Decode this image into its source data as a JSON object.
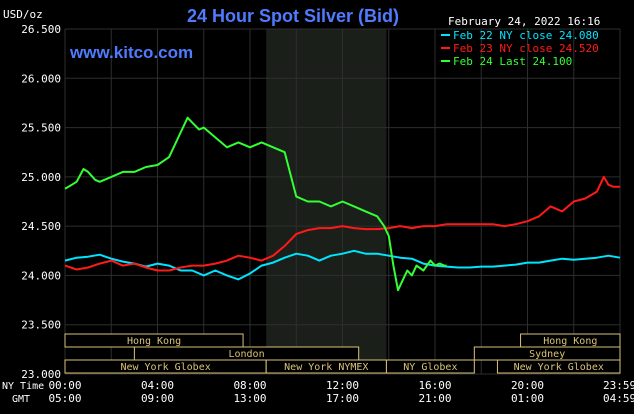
{
  "header": {
    "title": "24 Hour Spot Silver (Bid)",
    "date": "February 24, 2022 16:16",
    "watermark": "www.kitco.com",
    "units": "USD/oz"
  },
  "legend_entries": [
    {
      "label": "Feb 22 NY close 24.080",
      "color": "#00e5ff"
    },
    {
      "label": "Feb 23 NY close 24.520",
      "color": "#ff1a1a"
    },
    {
      "label": "Feb 24 Last 24.100",
      "color": "#33ff33"
    }
  ],
  "row_labels": {
    "ny_time": "NY Time",
    "gmt": "GMT"
  },
  "sessions": [
    {
      "name": "Hong Kong",
      "row": 0,
      "start": 0,
      "end": 7.7
    },
    {
      "name": "London",
      "row": 1,
      "start": 3,
      "end": 12.7
    },
    {
      "name": "New York Globex",
      "row": 2,
      "start": 0,
      "end": 8.7
    },
    {
      "name": "New York NYMEX",
      "row": 2,
      "start": 8.7,
      "end": 13.9
    },
    {
      "name": "NY Globex",
      "row": 2,
      "start": 13.9,
      "end": 17.7
    },
    {
      "name": "Hong Kong",
      "row": 0,
      "start": 19.7,
      "end": 24
    },
    {
      "name": "Sydney",
      "row": 1,
      "start": 17.7,
      "end": 24
    },
    {
      "name": "New York Globex",
      "row": 2,
      "start": 18.7,
      "end": 24
    }
  ],
  "colors": {
    "background": "#000000",
    "plot_background": "#000000",
    "nymex_shade": "#1a1f1a",
    "grid": "#2e2e2e",
    "axis_text": "#ffffff",
    "title": "#4f7bff",
    "watermark": "#4f7bff",
    "session_box": "#d9c27a",
    "session_text": "#d9c27a",
    "box_bg": "#000000"
  },
  "chart_data": {
    "type": "line",
    "title": "24 Hour Spot Silver (Bid)",
    "ylabel": "USD/oz",
    "xlim": [
      0,
      24
    ],
    "ylim": [
      23.0,
      26.5
    ],
    "yticks": [
      23.0,
      23.5,
      24.0,
      24.5,
      25.0,
      25.5,
      26.0,
      26.5
    ],
    "ytick_labels": [
      "23.000",
      "23.500",
      "24.000",
      "24.500",
      "25.000",
      "25.500",
      "26.000",
      "26.500"
    ],
    "xticks": [
      0,
      4,
      8,
      12,
      16,
      20,
      23.98
    ],
    "xtick_labels_ny": [
      "00:00",
      "04:00",
      "08:00",
      "12:00",
      "16:00",
      "20:00",
      "23:59"
    ],
    "xtick_labels_gmt": [
      "05:00",
      "09:00",
      "13:00",
      "17:00",
      "21:00",
      "01:00",
      "04:59"
    ],
    "shaded_region": {
      "label": "New York NYMEX",
      "start": 8.7,
      "end": 13.9
    },
    "grid": true,
    "legend_position": "top-right",
    "series": [
      {
        "name": "Feb 22 NY close 24.080",
        "color": "#00e5ff",
        "x": [
          0,
          0.5,
          1,
          1.5,
          2,
          2.5,
          3,
          3.5,
          4,
          4.5,
          5,
          5.5,
          6,
          6.5,
          7,
          7.5,
          8,
          8.5,
          9,
          9.5,
          10,
          10.5,
          11,
          11.5,
          12,
          12.5,
          13,
          13.5,
          14,
          14.5,
          15,
          15.5,
          16,
          16.5,
          17,
          17.5,
          18,
          18.5,
          19,
          19.5,
          20,
          20.5,
          21,
          21.5,
          22,
          22.5,
          23,
          23.5,
          24
        ],
        "y": [
          24.15,
          24.18,
          24.19,
          24.21,
          24.17,
          24.14,
          24.12,
          24.09,
          24.12,
          24.1,
          24.05,
          24.05,
          24.0,
          24.05,
          24.0,
          23.96,
          24.02,
          24.1,
          24.13,
          24.18,
          24.22,
          24.2,
          24.15,
          24.2,
          24.22,
          24.25,
          24.22,
          24.22,
          24.2,
          24.18,
          24.17,
          24.12,
          24.1,
          24.09,
          24.08,
          24.08,
          24.09,
          24.09,
          24.1,
          24.11,
          24.13,
          24.13,
          24.15,
          24.17,
          24.16,
          24.17,
          24.18,
          24.2,
          24.18
        ]
      },
      {
        "name": "Feb 23 NY close 24.520",
        "color": "#ff1a1a",
        "x": [
          0,
          0.5,
          1,
          1.5,
          2,
          2.5,
          3,
          3.5,
          4,
          4.5,
          5,
          5.5,
          6,
          6.5,
          7,
          7.5,
          8,
          8.5,
          9,
          9.5,
          10,
          10.5,
          11,
          11.5,
          12,
          12.5,
          13,
          13.5,
          14,
          14.5,
          15,
          15.5,
          16,
          16.5,
          17,
          17.5,
          18,
          18.5,
          19,
          19.5,
          20,
          20.5,
          21,
          21.5,
          22,
          22.5,
          23,
          23.3,
          23.5,
          23.7,
          24
        ],
        "y": [
          24.1,
          24.06,
          24.08,
          24.12,
          24.15,
          24.1,
          24.12,
          24.08,
          24.05,
          24.05,
          24.08,
          24.1,
          24.1,
          24.12,
          24.15,
          24.2,
          24.18,
          24.15,
          24.2,
          24.3,
          24.42,
          24.46,
          24.48,
          24.48,
          24.5,
          24.48,
          24.47,
          24.47,
          24.48,
          24.5,
          24.48,
          24.5,
          24.5,
          24.52,
          24.52,
          24.52,
          24.52,
          24.52,
          24.5,
          24.52,
          24.55,
          24.6,
          24.7,
          24.65,
          24.75,
          24.78,
          24.85,
          25.0,
          24.92,
          24.9,
          24.9
        ]
      },
      {
        "name": "Feb 24 Last 24.100",
        "color": "#33ff33",
        "x": [
          0,
          0.3,
          0.5,
          0.8,
          1,
          1.3,
          1.5,
          2,
          2.5,
          3,
          3.5,
          4,
          4.5,
          5,
          5.3,
          5.5,
          5.8,
          6,
          6.5,
          7,
          7.5,
          8,
          8.5,
          9,
          9.5,
          10,
          10.5,
          11,
          11.5,
          12,
          12.5,
          13,
          13.5,
          13.8,
          14,
          14.2,
          14.4,
          14.6,
          14.8,
          15,
          15.2,
          15.5,
          15.8,
          16,
          16.2,
          16.4,
          16.5
        ],
        "y": [
          24.88,
          24.92,
          24.95,
          25.08,
          25.05,
          24.97,
          24.95,
          25.0,
          25.05,
          25.05,
          25.1,
          25.12,
          25.2,
          25.45,
          25.6,
          25.55,
          25.48,
          25.5,
          25.4,
          25.3,
          25.35,
          25.3,
          25.35,
          25.3,
          25.25,
          24.8,
          24.75,
          24.75,
          24.7,
          24.75,
          24.7,
          24.65,
          24.6,
          24.5,
          24.4,
          24.1,
          23.85,
          23.95,
          24.05,
          24.0,
          24.1,
          24.05,
          24.15,
          24.1,
          24.12,
          24.1,
          24.1
        ]
      }
    ]
  }
}
